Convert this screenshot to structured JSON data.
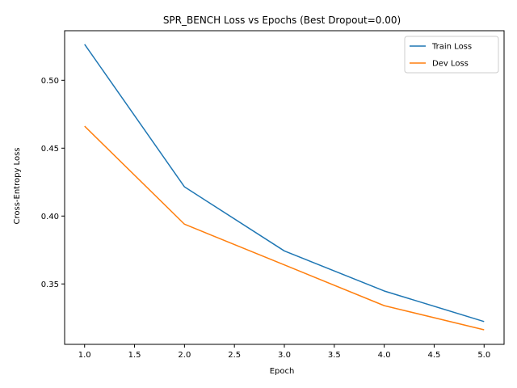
{
  "chart_data": {
    "type": "line",
    "title": "SPR_BENCH Loss vs Epochs (Best Dropout=0.00)",
    "xlabel": "Epoch",
    "ylabel": "Cross-Entropy Loss",
    "x": [
      1,
      2,
      3,
      4,
      5
    ],
    "xlim": [
      0.8,
      5.2
    ],
    "ylim": [
      0.3055,
      0.5365
    ],
    "xticks": [
      1.0,
      1.5,
      2.0,
      2.5,
      3.0,
      3.5,
      4.0,
      4.5,
      5.0
    ],
    "xtick_labels": [
      "1.0",
      "1.5",
      "2.0",
      "2.5",
      "3.0",
      "3.5",
      "4.0",
      "4.5",
      "5.0"
    ],
    "yticks": [
      0.35,
      0.4,
      0.45,
      0.5
    ],
    "ytick_labels": [
      "0.35",
      "0.40",
      "0.45",
      "0.50"
    ],
    "grid": false,
    "legend_position": "top-right",
    "series": [
      {
        "name": "Train Loss",
        "color": "#1f77b4",
        "values": [
          0.5265,
          0.4215,
          0.3743,
          0.3448,
          0.3223
        ]
      },
      {
        "name": "Dev Loss",
        "color": "#ff7f0e",
        "values": [
          0.4662,
          0.394,
          0.364,
          0.334,
          0.3162
        ]
      }
    ]
  }
}
